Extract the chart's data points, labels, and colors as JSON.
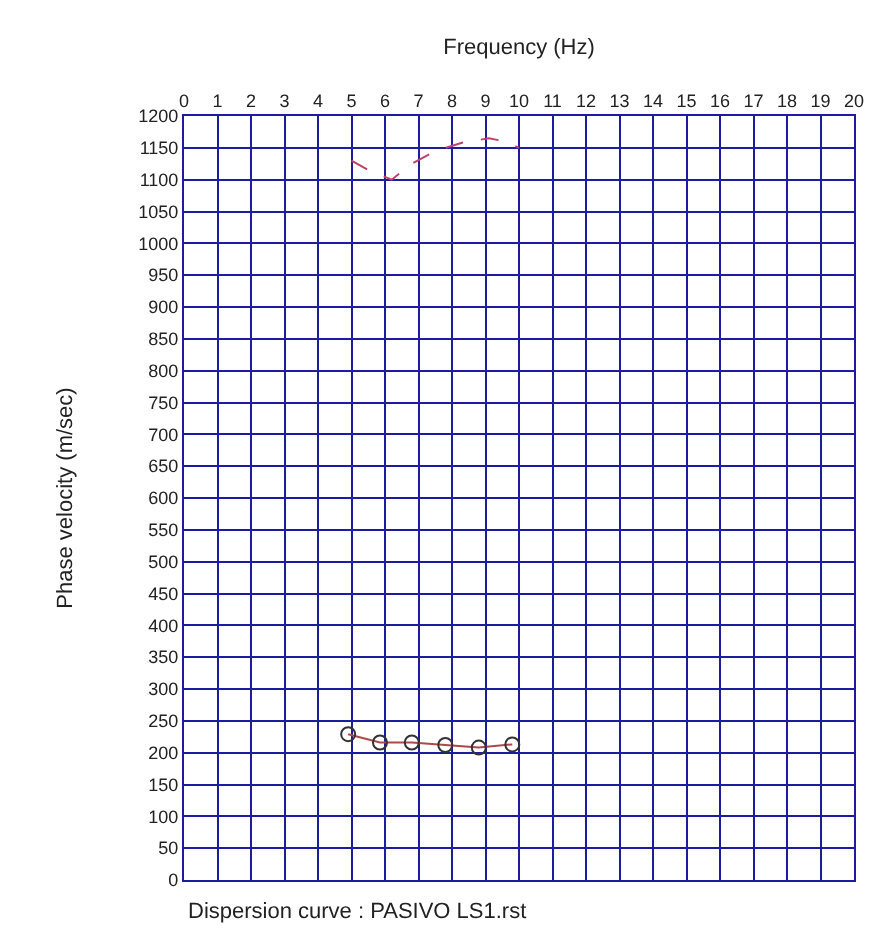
{
  "chart_data": {
    "type": "line",
    "xlabel": "Frequency (Hz)",
    "ylabel": "Phase velocity (m/sec)",
    "xlim": [
      0,
      20
    ],
    "xticks": [
      0,
      1,
      2,
      3,
      4,
      5,
      6,
      7,
      8,
      9,
      10,
      11,
      12,
      13,
      14,
      15,
      16,
      17,
      18,
      19,
      20
    ],
    "ylim": [
      0,
      1200
    ],
    "yticks": [
      0,
      50,
      100,
      150,
      200,
      250,
      300,
      350,
      400,
      450,
      500,
      550,
      600,
      650,
      700,
      750,
      800,
      850,
      900,
      950,
      1000,
      1050,
      1100,
      1150,
      1200
    ],
    "grid": true,
    "series": [
      {
        "color": "#b04848",
        "marker": "circle",
        "line_style": "solid",
        "x": [
          4.9,
          5.85,
          6.8,
          7.8,
          8.8,
          9.8
        ],
        "values": [
          229,
          216,
          216,
          212,
          208,
          213
        ]
      },
      {
        "color": "#c04070",
        "marker": "none",
        "line_style": "dashed",
        "x": [
          5,
          5.5,
          6.2,
          6.8,
          7.5,
          8.3,
          9.1,
          9.6,
          10
        ],
        "values": [
          1130,
          1115,
          1100,
          1125,
          1145,
          1158,
          1165,
          1160,
          1150
        ]
      }
    ],
    "annotations": [
      "Dispersion curve : PASIVO LS1.rst"
    ]
  }
}
